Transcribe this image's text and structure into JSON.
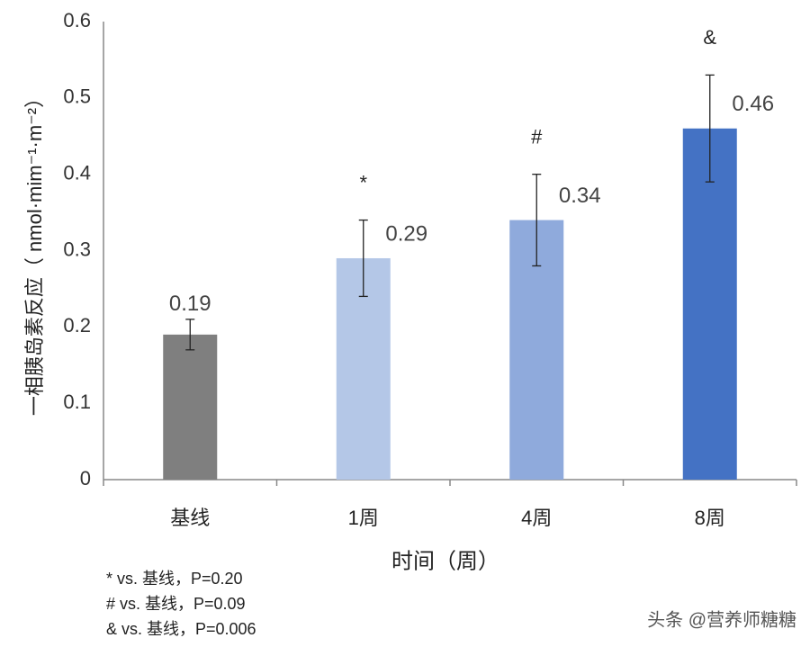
{
  "chart_data": {
    "type": "bar",
    "y_label": "一相胰岛素反应（ nmol·mim⁻¹·m⁻²）",
    "x_label": "时间（周）",
    "categories": [
      "基线",
      "1周",
      "4周",
      "8周"
    ],
    "values": [
      0.19,
      0.29,
      0.34,
      0.46
    ],
    "errors": [
      0.02,
      0.05,
      0.06,
      0.07
    ],
    "colors": [
      "#7f7f7f",
      "#b4c7e7",
      "#8faadc",
      "#4472c4"
    ],
    "markers": [
      null,
      "*",
      "#",
      "&"
    ],
    "ylim": [
      0,
      0.6
    ],
    "yticks": [
      0,
      0.1,
      0.2,
      0.3,
      0.4,
      0.5,
      0.6
    ],
    "grid": false,
    "footnotes": [
      "* vs. 基线，P=0.20",
      "# vs. 基线，P=0.09",
      "& vs. 基线，P=0.006"
    ],
    "watermark": "头条 @营养师糖糖"
  }
}
